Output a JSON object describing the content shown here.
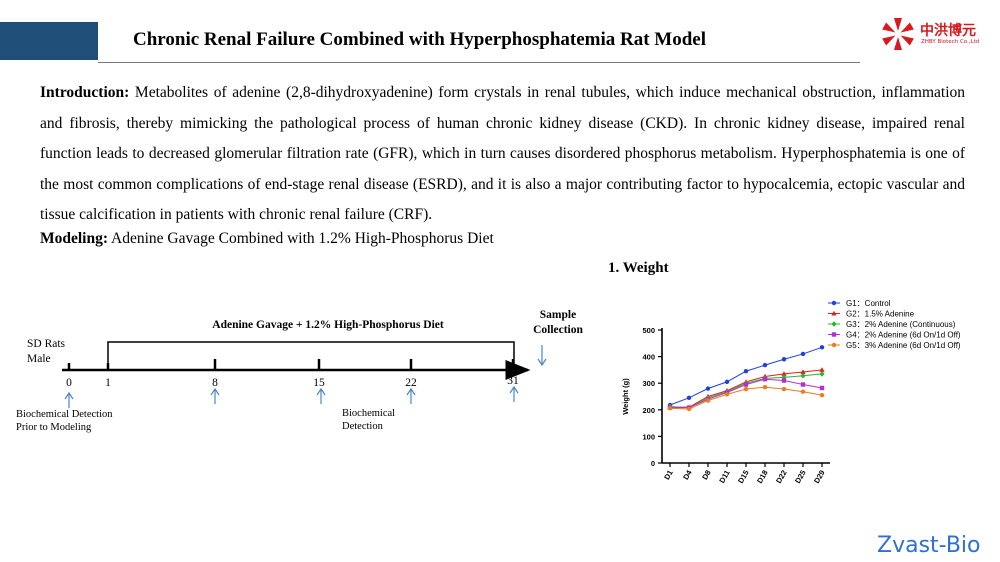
{
  "header": {
    "title": "Chronic Renal Failure Combined with Hyperphosphatemia Rat Model",
    "logo_cn": "中洪博元",
    "logo_en": "ZHBY Biotech Co.,Ltd"
  },
  "intro": {
    "label": "Introduction:",
    "text": " Metabolites of adenine (2,8-dihydroxyadenine) form crystals in renal tubules, which induce mechanical obstruction, inflammation and fibrosis, thereby mimicking the pathological process of human chronic kidney disease (CKD). In chronic kidney disease, impaired renal function leads to decreased glomerular filtration rate (GFR), which in turn causes disordered phosphorus metabolism. Hyperphosphatemia is one of the most common complications of end-stage renal disease (ESRD), and it is also a major contributing factor to hypocalcemia, ectopic vascular and tissue calcification in patients with chronic renal failure (CRF)."
  },
  "modeling": {
    "label": "Modeling:",
    "text": " Adenine Gavage Combined with 1.2% High-Phosphorus Diet"
  },
  "timeline": {
    "bracket_label": "Adenine Gavage + 1.2% High-Phosphorus Diet",
    "subject_line1": "SD Rats",
    "subject_line2": "Male",
    "sample_line1": "Sample",
    "sample_line2": "Collection",
    "ticks": [
      "0",
      "1",
      "8",
      "15",
      "22",
      "31"
    ],
    "bio_left_line1": "Biochemical Detection",
    "bio_left_line2": "Prior to Modeling",
    "bio_mid_line1": "Biochemical",
    "bio_mid_line2": "Detection",
    "arrow_color": "#4a86c8"
  },
  "weight_title": "1. Weight",
  "chart_data": {
    "type": "line",
    "ylabel": "Weight (g)",
    "xlabel": "",
    "ylim": [
      0,
      500
    ],
    "yticks": [
      0,
      100,
      200,
      300,
      400,
      500
    ],
    "categories": [
      "D1",
      "D4",
      "D8",
      "D11",
      "D15",
      "D18",
      "D22",
      "D25",
      "D29"
    ],
    "legend_position": "top-right",
    "series": [
      {
        "name": "G1：Control",
        "color": "#1f3fe0",
        "marker": "circle",
        "values": [
          218,
          245,
          280,
          305,
          345,
          368,
          390,
          410,
          435
        ]
      },
      {
        "name": "G2：1.5% Adenine",
        "color": "#e0201b",
        "marker": "triangle",
        "values": [
          210,
          210,
          250,
          272,
          305,
          325,
          335,
          342,
          350
        ]
      },
      {
        "name": "G3：2%  Adenine (Continuous)",
        "color": "#2bb52b",
        "marker": "diamond",
        "values": [
          212,
          208,
          245,
          268,
          300,
          318,
          322,
          328,
          335
        ]
      },
      {
        "name": "G4：2% Adenine (6d On/1d Off)",
        "color": "#b02fd6",
        "marker": "square",
        "values": [
          208,
          208,
          240,
          265,
          295,
          315,
          310,
          295,
          282
        ]
      },
      {
        "name": "G5：3% Adenine (6d On/1d Off)",
        "color": "#ef7b1a",
        "marker": "circle",
        "values": [
          206,
          203,
          235,
          258,
          278,
          285,
          278,
          268,
          255
        ]
      }
    ]
  },
  "brand": "Zvast-Bio"
}
